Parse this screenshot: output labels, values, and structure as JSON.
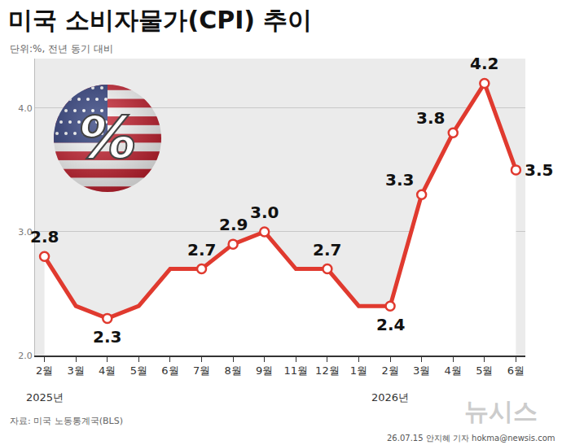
{
  "chart_data": {
    "type": "line",
    "title": "미국 소비자물가(CPI) 추이",
    "subtitle": "단위:%, 전년 동기 대비",
    "categories": [
      "2월",
      "3월",
      "4월",
      "5월",
      "6월",
      "7월",
      "8월",
      "9월",
      "11월",
      "12월",
      "1월",
      "2월",
      "3월",
      "4월",
      "5월",
      "6월"
    ],
    "values": [
      2.8,
      2.4,
      2.3,
      2.4,
      2.7,
      2.7,
      2.9,
      3.0,
      2.7,
      2.7,
      2.4,
      2.4,
      3.3,
      3.8,
      4.2,
      3.5
    ],
    "value_labels": [
      "2.8",
      null,
      "2.3",
      null,
      null,
      "2.7",
      "2.9",
      "3.0",
      null,
      "2.7",
      null,
      "2.4",
      "3.3",
      "3.8",
      "4.2",
      "3.5"
    ],
    "data_labels": true,
    "annotations": [
      {
        "text": "2025년",
        "category_index": 0
      },
      {
        "text": "2026년",
        "category_index": 11
      }
    ],
    "color": "#e03a2f",
    "marker": "circle",
    "ylim": [
      2.0,
      4.4
    ],
    "yticks": [
      {
        "value": 2.0,
        "label": "2.0"
      },
      {
        "value": 3.0,
        "label": "3.0"
      },
      {
        "value": 4.0,
        "label": "4.0"
      }
    ],
    "grid": true,
    "source": "자료: 미국 노동통계국(BLS)",
    "credit": "26.07.15 안지혜 기자 hokma@newsis.com",
    "watermark": "뉴시스",
    "icon_text": "%"
  }
}
